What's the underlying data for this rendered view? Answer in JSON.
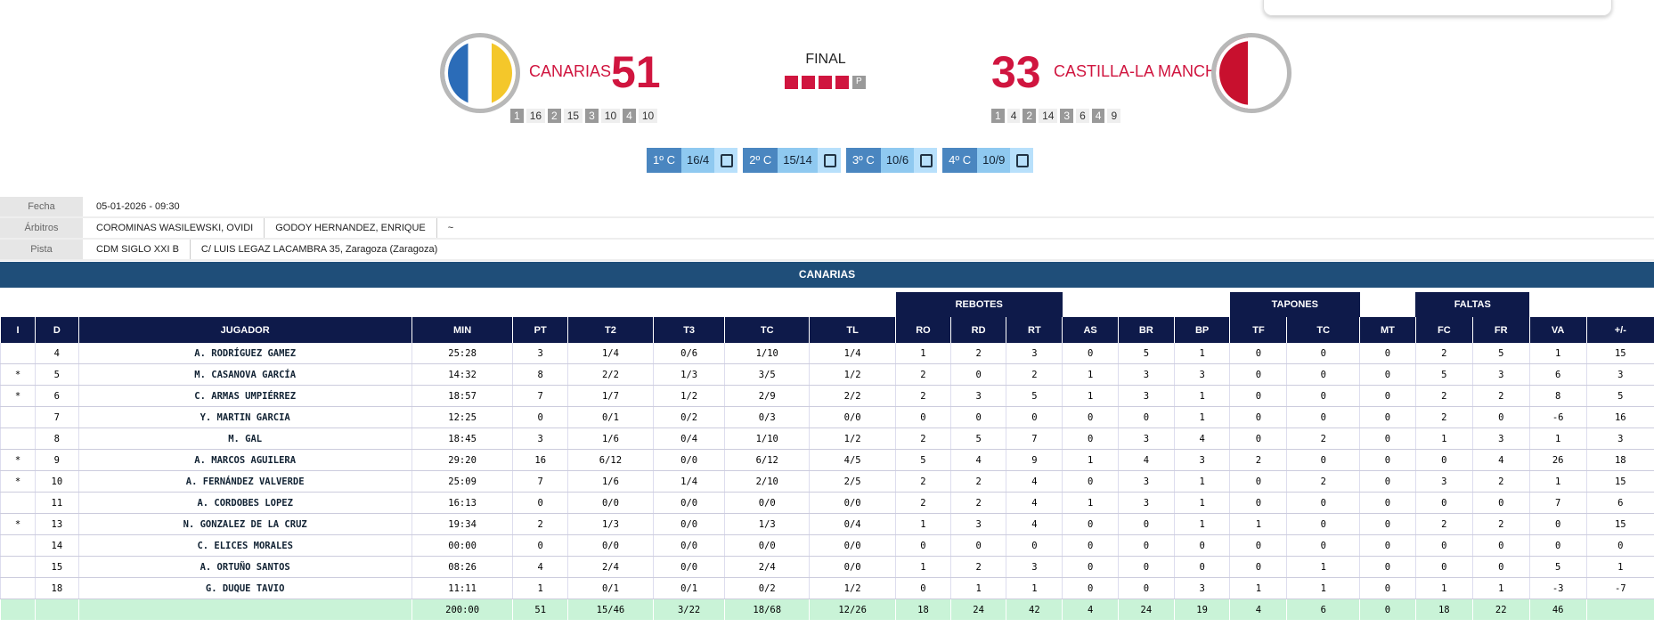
{
  "header": {
    "status": "FINAL",
    "period_badge": "P",
    "home": {
      "name": "CANARIAS",
      "score": 51,
      "quarters": [
        {
          "label": "1",
          "score": 16
        },
        {
          "label": "2",
          "score": 15
        },
        {
          "label": "3",
          "score": 10
        },
        {
          "label": "4",
          "score": 10
        }
      ]
    },
    "away": {
      "name": "CASTILLA-LA MANCHA",
      "score": 33,
      "quarters": [
        {
          "label": "1",
          "score": 4
        },
        {
          "label": "2",
          "score": 14
        },
        {
          "label": "3",
          "score": 6
        },
        {
          "label": "4",
          "score": 9
        }
      ]
    }
  },
  "quarter_buttons": [
    {
      "label": "1º C",
      "score": "16/4"
    },
    {
      "label": "2º C",
      "score": "15/14"
    },
    {
      "label": "3º C",
      "score": "10/6"
    },
    {
      "label": "4º C",
      "score": "10/9"
    }
  ],
  "info": [
    {
      "label": "Fecha",
      "values": [
        "05-01-2026 - 09:30"
      ]
    },
    {
      "label": "Árbitros",
      "values": [
        "COROMINAS WASILEWSKI, OVIDI",
        "GODOY HERNANDEZ, ENRIQUE",
        "~"
      ]
    },
    {
      "label": "Pista",
      "values": [
        "CDM SIGLO XXI B",
        "C/ LUIS LEGAZ LACAMBRA 35, Zaragoza (Zaragoza)"
      ]
    }
  ],
  "table": {
    "title": "CANARIAS",
    "groups": [
      "REBOTES",
      "TAPONES",
      "FALTAS"
    ],
    "columns": [
      "I",
      "D",
      "JUGADOR",
      "MIN",
      "PT",
      "T2",
      "T3",
      "TC",
      "TL",
      "RO",
      "RD",
      "RT",
      "AS",
      "BR",
      "BP",
      "TF",
      "TC",
      "MT",
      "FC",
      "FR",
      "VA",
      "+/-"
    ],
    "rows": [
      [
        null,
        "4",
        "A. RODRÍGUEZ GAMEZ",
        "25:28",
        "3",
        "1/4",
        "0/6",
        "1/10",
        "1/4",
        "1",
        "2",
        "3",
        "0",
        "5",
        "1",
        "0",
        "0",
        "0",
        "2",
        "5",
        "1",
        "15"
      ],
      [
        "*",
        "5",
        "M. CASANOVA GARCÍA",
        "14:32",
        "8",
        "2/2",
        "1/3",
        "3/5",
        "1/2",
        "2",
        "0",
        "2",
        "1",
        "3",
        "3",
        "0",
        "0",
        "0",
        "5",
        "3",
        "6",
        "3"
      ],
      [
        "*",
        "6",
        "C. ARMAS UMPIÉRREZ",
        "18:57",
        "7",
        "1/7",
        "1/2",
        "2/9",
        "2/2",
        "2",
        "3",
        "5",
        "1",
        "3",
        "1",
        "0",
        "0",
        "0",
        "2",
        "2",
        "8",
        "5"
      ],
      [
        null,
        "7",
        "Y. MARTIN GARCIA",
        "12:25",
        "0",
        "0/1",
        "0/2",
        "0/3",
        "0/0",
        "0",
        "0",
        "0",
        "0",
        "0",
        "1",
        "0",
        "0",
        "0",
        "2",
        "0",
        "-6",
        "16"
      ],
      [
        null,
        "8",
        "M. GAL",
        "18:45",
        "3",
        "1/6",
        "0/4",
        "1/10",
        "1/2",
        "2",
        "5",
        "7",
        "0",
        "3",
        "4",
        "0",
        "2",
        "0",
        "1",
        "3",
        "1",
        "3"
      ],
      [
        "*",
        "9",
        "A. MARCOS AGUILERA",
        "29:20",
        "16",
        "6/12",
        "0/0",
        "6/12",
        "4/5",
        "5",
        "4",
        "9",
        "1",
        "4",
        "3",
        "2",
        "0",
        "0",
        "0",
        "4",
        "26",
        "18"
      ],
      [
        "*",
        "10",
        "A. FERNÁNDEZ VALVERDE",
        "25:09",
        "7",
        "1/6",
        "1/4",
        "2/10",
        "2/5",
        "2",
        "2",
        "4",
        "0",
        "3",
        "1",
        "0",
        "2",
        "0",
        "3",
        "2",
        "1",
        "15"
      ],
      [
        null,
        "11",
        "A. CORDOBES LOPEZ",
        "16:13",
        "0",
        "0/0",
        "0/0",
        "0/0",
        "0/0",
        "2",
        "2",
        "4",
        "1",
        "3",
        "1",
        "0",
        "0",
        "0",
        "0",
        "0",
        "7",
        "6"
      ],
      [
        "*",
        "13",
        "N. GONZALEZ DE LA CRUZ",
        "19:34",
        "2",
        "1/3",
        "0/0",
        "1/3",
        "0/4",
        "1",
        "3",
        "4",
        "0",
        "0",
        "1",
        "1",
        "0",
        "0",
        "2",
        "2",
        "0",
        "15"
      ],
      [
        null,
        "14",
        "C. ELICES MORALES",
        "00:00",
        "0",
        "0/0",
        "0/0",
        "0/0",
        "0/0",
        "0",
        "0",
        "0",
        "0",
        "0",
        "0",
        "0",
        "0",
        "0",
        "0",
        "0",
        "0",
        "0"
      ],
      [
        null,
        "15",
        "A. ORTUÑO SANTOS",
        "08:26",
        "4",
        "2/4",
        "0/0",
        "2/4",
        "0/0",
        "1",
        "2",
        "3",
        "0",
        "0",
        "0",
        "0",
        "1",
        "0",
        "0",
        "0",
        "5",
        "1"
      ],
      [
        null,
        "18",
        "G. DUQUE TAVIO",
        "11:11",
        "1",
        "0/1",
        "0/1",
        "0/2",
        "1/2",
        "0",
        "1",
        "1",
        "0",
        "0",
        "3",
        "1",
        "1",
        "0",
        "1",
        "1",
        "-3",
        "-7"
      ]
    ],
    "totals": [
      null,
      null,
      null,
      "200:00",
      "51",
      "15/46",
      "3/22",
      "18/68",
      "12/26",
      "18",
      "24",
      "42",
      "4",
      "24",
      "19",
      "4",
      "6",
      "0",
      "18",
      "22",
      "46",
      null
    ]
  }
}
